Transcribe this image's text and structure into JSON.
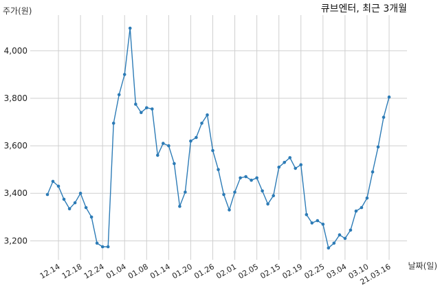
{
  "chart_data": {
    "type": "line",
    "title": "큐브엔터, 최근 3개월",
    "ylabel": "주가(원)",
    "xlabel": "날짜(일)",
    "ylim": [
      3120,
      4150
    ],
    "yticks": [
      3200,
      3400,
      3600,
      3800,
      4000
    ],
    "ytick_labels": [
      "3,200",
      "3,400",
      "3,600",
      "3,800",
      "4,000"
    ],
    "grid": true,
    "series_color": "#2c7bb6",
    "x": [
      "12.10",
      "12.11",
      "12.14",
      "12.15",
      "12.16",
      "12.17",
      "12.18",
      "12.21",
      "12.22",
      "12.23",
      "12.24",
      "12.28",
      "12.29",
      "12.30",
      "01.04",
      "01.05",
      "01.06",
      "01.07",
      "01.08",
      "01.11",
      "01.12",
      "01.13",
      "01.14",
      "01.15",
      "01.18",
      "01.19",
      "01.20",
      "01.21",
      "01.22",
      "01.25",
      "01.26",
      "01.27",
      "01.28",
      "01.29",
      "02.01",
      "02.02",
      "02.03",
      "02.04",
      "02.05",
      "02.08",
      "02.09",
      "02.10",
      "02.15",
      "02.16",
      "02.17",
      "02.18",
      "02.19",
      "02.22",
      "02.23",
      "02.24",
      "02.25",
      "02.26",
      "03.02",
      "03.03",
      "03.04",
      "03.05",
      "03.08",
      "03.09",
      "03.10",
      "03.11",
      "03.12",
      "03.15",
      "21.03.16"
    ],
    "tick_categories": [
      "12.14",
      "12.18",
      "12.24",
      "01.04",
      "01.08",
      "01.14",
      "01.20",
      "01.26",
      "02.01",
      "02.05",
      "02.15",
      "02.19",
      "02.25",
      "03.04",
      "03.10",
      "21.03.16"
    ],
    "values": [
      3395,
      3450,
      3430,
      3375,
      3335,
      3360,
      3400,
      3340,
      3300,
      3190,
      3175,
      3175,
      3695,
      3815,
      3900,
      4095,
      3775,
      3740,
      3760,
      3755,
      3560,
      3610,
      3600,
      3525,
      3345,
      3405,
      3620,
      3635,
      3695,
      3730,
      3580,
      3500,
      3395,
      3330,
      3405,
      3465,
      3470,
      3455,
      3465,
      3410,
      3355,
      3390,
      3510,
      3530,
      3550,
      3505,
      3520,
      3310,
      3275,
      3285,
      3270,
      3170,
      3190,
      3225,
      3210,
      3245,
      3325,
      3340,
      3380,
      3490,
      3595,
      3720,
      3805
    ]
  }
}
